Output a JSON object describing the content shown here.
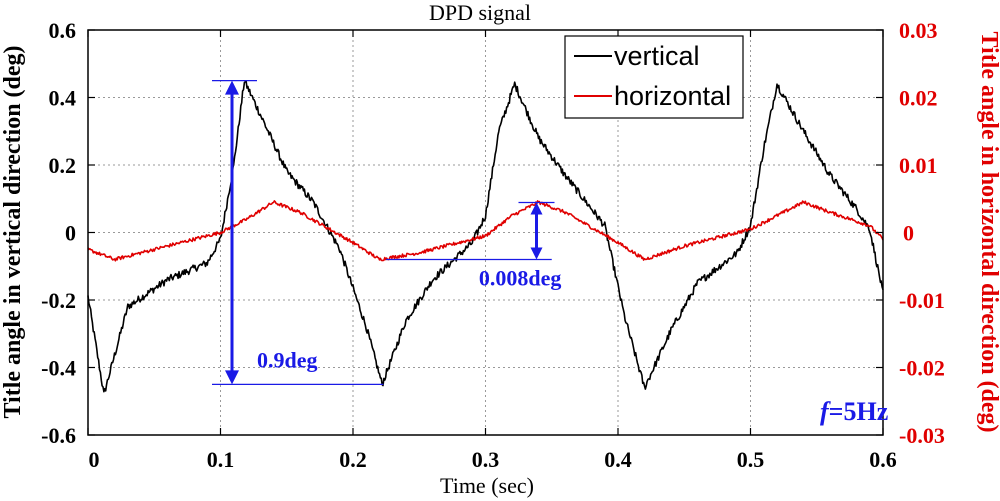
{
  "chart_data": {
    "type": "line",
    "title": "DPD signal",
    "xlabel": "Time (sec)",
    "ylabel_left": "Title angle in vertical direction (deg)",
    "ylabel_right": "Title angle in horizontal direction (deg)",
    "xlim": [
      0,
      0.6
    ],
    "ylim_left": [
      -0.6,
      0.6
    ],
    "ylim_right": [
      -0.03,
      0.03
    ],
    "x_ticks": [
      "0",
      "0.1",
      "0.2",
      "0.3",
      "0.4",
      "0.5",
      "0.6"
    ],
    "y_left_ticks": [
      "0.6",
      "0.4",
      "0.2",
      "0",
      "-0.2",
      "-0.4",
      "-0.6"
    ],
    "y_right_ticks": [
      "0.03",
      "0.02",
      "0.01",
      "0",
      "-0.01",
      "-0.02",
      "-0.03"
    ],
    "grid": true,
    "legend_position": "top-right",
    "series": [
      {
        "name": "vertical",
        "axis": "left",
        "color": "#000000",
        "points": [
          [
            0,
            -0.19
          ],
          [
            0.012,
            -0.48
          ],
          [
            0.03,
            -0.22
          ],
          [
            0.06,
            -0.14
          ],
          [
            0.09,
            -0.09
          ],
          [
            0.1,
            -0.02
          ],
          [
            0.11,
            0.2
          ],
          [
            0.118,
            0.45
          ],
          [
            0.13,
            0.35
          ],
          [
            0.15,
            0.18
          ],
          [
            0.17,
            0.09
          ],
          [
            0.19,
            -0.05
          ],
          [
            0.21,
            -0.28
          ],
          [
            0.222,
            -0.45
          ],
          [
            0.24,
            -0.26
          ],
          [
            0.26,
            -0.14
          ],
          [
            0.29,
            -0.03
          ],
          [
            0.3,
            0.05
          ],
          [
            0.31,
            0.3
          ],
          [
            0.322,
            0.44
          ],
          [
            0.34,
            0.28
          ],
          [
            0.36,
            0.17
          ],
          [
            0.38,
            0.07
          ],
          [
            0.39,
            0.02
          ],
          [
            0.405,
            -0.25
          ],
          [
            0.42,
            -0.46
          ],
          [
            0.44,
            -0.29
          ],
          [
            0.46,
            -0.15
          ],
          [
            0.49,
            -0.06
          ],
          [
            0.5,
            0.02
          ],
          [
            0.51,
            0.25
          ],
          [
            0.52,
            0.44
          ],
          [
            0.54,
            0.3
          ],
          [
            0.56,
            0.17
          ],
          [
            0.58,
            0.07
          ],
          [
            0.59,
            0.01
          ],
          [
            0.6,
            -0.18
          ]
        ]
      },
      {
        "name": "horizontal",
        "axis": "right",
        "color": "#e00000",
        "points": [
          [
            0,
            -0.0025
          ],
          [
            0.02,
            -0.004
          ],
          [
            0.05,
            -0.0025
          ],
          [
            0.1,
            0
          ],
          [
            0.12,
            0.002
          ],
          [
            0.14,
            0.0045
          ],
          [
            0.16,
            0.003
          ],
          [
            0.2,
            -0.0015
          ],
          [
            0.22,
            -0.004
          ],
          [
            0.25,
            -0.003
          ],
          [
            0.3,
            -0.0005
          ],
          [
            0.32,
            0.0025
          ],
          [
            0.34,
            0.0045
          ],
          [
            0.36,
            0.003
          ],
          [
            0.4,
            -0.0015
          ],
          [
            0.42,
            -0.004
          ],
          [
            0.45,
            -0.002
          ],
          [
            0.5,
            0.0005
          ],
          [
            0.52,
            0.0025
          ],
          [
            0.54,
            0.0045
          ],
          [
            0.56,
            0.003
          ],
          [
            0.59,
            0.001
          ],
          [
            0.6,
            -0.001
          ]
        ]
      }
    ],
    "annotations": [
      {
        "label": "0.9deg",
        "axis": "left",
        "from": -0.45,
        "to": 0.45,
        "x": 0.12
      },
      {
        "label": "0.008deg",
        "axis": "right",
        "from": -0.004,
        "to": 0.004,
        "x": 0.34
      }
    ],
    "frequency_label_prefix": "f",
    "frequency_label_value": "=5Hz"
  }
}
